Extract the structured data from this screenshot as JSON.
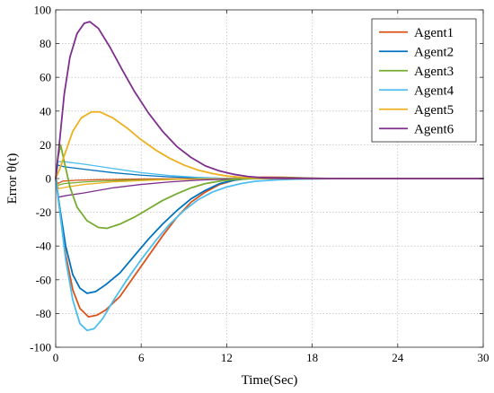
{
  "chart_data": {
    "type": "line",
    "title": "",
    "xlabel": "Time(Sec)",
    "ylabel": "Error θ(t)",
    "xlim": [
      0,
      30
    ],
    "ylim": [
      -100,
      100
    ],
    "xticks": [
      0,
      6,
      12,
      18,
      24,
      30
    ],
    "yticks": [
      -100,
      -80,
      -60,
      -40,
      -20,
      0,
      20,
      40,
      60,
      80,
      100
    ],
    "grid": true,
    "legend_position": "top-right",
    "series": [
      {
        "name": "Agent1",
        "color": "#D95319",
        "values": [
          [
            0,
            0
          ],
          [
            0.3,
            -20
          ],
          [
            0.7,
            -45
          ],
          [
            1.2,
            -66
          ],
          [
            1.7,
            -77
          ],
          [
            2.3,
            -82
          ],
          [
            2.9,
            -81
          ],
          [
            3.5,
            -78
          ],
          [
            4.5,
            -70
          ],
          [
            5.5,
            -58
          ],
          [
            6.5,
            -46
          ],
          [
            7.5,
            -34
          ],
          [
            8.5,
            -23
          ],
          [
            9.5,
            -14
          ],
          [
            10.5,
            -8
          ],
          [
            11.5,
            -3.5
          ],
          [
            12.5,
            -1
          ],
          [
            13.5,
            0.3
          ],
          [
            14.5,
            0.8
          ],
          [
            16,
            0.7
          ],
          [
            18,
            0.2
          ],
          [
            20,
            0
          ],
          [
            30,
            0
          ]
        ]
      },
      {
        "name": "Agent2",
        "color": "#0072BD",
        "values": [
          [
            0,
            0
          ],
          [
            0.3,
            -18
          ],
          [
            0.7,
            -40
          ],
          [
            1.2,
            -57
          ],
          [
            1.7,
            -65
          ],
          [
            2.2,
            -68
          ],
          [
            2.8,
            -67
          ],
          [
            3.5,
            -63
          ],
          [
            4.5,
            -56
          ],
          [
            5.5,
            -46
          ],
          [
            6.5,
            -36
          ],
          [
            7.5,
            -27
          ],
          [
            8.5,
            -19
          ],
          [
            9.5,
            -12
          ],
          [
            10.5,
            -7
          ],
          [
            11.5,
            -3
          ],
          [
            12.5,
            -1
          ],
          [
            13.5,
            0
          ],
          [
            15,
            0.4
          ],
          [
            17,
            0.2
          ],
          [
            20,
            0
          ],
          [
            30,
            0
          ]
        ]
      },
      {
        "name": "Agent3",
        "color": "#77AC30",
        "values": [
          [
            0,
            0
          ],
          [
            0.15,
            12
          ],
          [
            0.35,
            20
          ],
          [
            0.6,
            10
          ],
          [
            1.0,
            -5
          ],
          [
            1.5,
            -17
          ],
          [
            2.2,
            -25
          ],
          [
            3.0,
            -29
          ],
          [
            3.6,
            -29.5
          ],
          [
            4.5,
            -27
          ],
          [
            5.5,
            -23
          ],
          [
            6.5,
            -18
          ],
          [
            7.5,
            -13
          ],
          [
            8.5,
            -9
          ],
          [
            9.5,
            -5.5
          ],
          [
            10.5,
            -3
          ],
          [
            11.5,
            -1.5
          ],
          [
            12.5,
            -0.5
          ],
          [
            14,
            0
          ],
          [
            16,
            0.2
          ],
          [
            20,
            0
          ],
          [
            30,
            0
          ]
        ]
      },
      {
        "name": "Agent4",
        "color": "#4DBEEE",
        "values": [
          [
            0,
            0
          ],
          [
            0.3,
            -20
          ],
          [
            0.7,
            -48
          ],
          [
            1.2,
            -72
          ],
          [
            1.7,
            -86
          ],
          [
            2.2,
            -90
          ],
          [
            2.7,
            -89
          ],
          [
            3.3,
            -83
          ],
          [
            4.0,
            -73
          ],
          [
            5.0,
            -60
          ],
          [
            6.0,
            -48
          ],
          [
            7.0,
            -37
          ],
          [
            8.0,
            -27
          ],
          [
            9.0,
            -19
          ],
          [
            10.0,
            -12.5
          ],
          [
            11.0,
            -8
          ],
          [
            12.0,
            -5
          ],
          [
            13.0,
            -3
          ],
          [
            14.0,
            -1.6
          ],
          [
            15.5,
            -0.8
          ],
          [
            17,
            -0.3
          ],
          [
            20,
            0
          ],
          [
            30,
            0
          ]
        ]
      },
      {
        "name": "Agent5",
        "color": "#EDB120",
        "values": [
          [
            0,
            0
          ],
          [
            0.3,
            6
          ],
          [
            0.7,
            16
          ],
          [
            1.2,
            28
          ],
          [
            1.8,
            36
          ],
          [
            2.5,
            39.5
          ],
          [
            3.1,
            39.5
          ],
          [
            4.0,
            36
          ],
          [
            5.0,
            30
          ],
          [
            6.0,
            23
          ],
          [
            7.0,
            17
          ],
          [
            8.0,
            12
          ],
          [
            9.0,
            8
          ],
          [
            10.0,
            5
          ],
          [
            11.0,
            3
          ],
          [
            12.0,
            1.5
          ],
          [
            13.0,
            0.7
          ],
          [
            14.5,
            0.2
          ],
          [
            16,
            0
          ],
          [
            30,
            0
          ]
        ]
      },
      {
        "name": "Agent6",
        "color": "#7E2F8E",
        "values": [
          [
            0,
            0
          ],
          [
            0.25,
            20
          ],
          [
            0.6,
            50
          ],
          [
            1.0,
            72
          ],
          [
            1.5,
            86
          ],
          [
            2.0,
            92
          ],
          [
            2.4,
            93
          ],
          [
            3.0,
            89
          ],
          [
            3.8,
            78
          ],
          [
            4.7,
            64
          ],
          [
            5.5,
            52
          ],
          [
            6.5,
            39
          ],
          [
            7.5,
            28
          ],
          [
            8.5,
            19
          ],
          [
            9.5,
            12.5
          ],
          [
            10.5,
            7.5
          ],
          [
            11.5,
            4.5
          ],
          [
            12.5,
            2.5
          ],
          [
            13.5,
            1.2
          ],
          [
            14.5,
            0.5
          ],
          [
            16,
            0.1
          ],
          [
            18,
            0
          ],
          [
            30,
            0
          ]
        ]
      },
      {
        "name": "",
        "color": "#D95319",
        "values": [
          [
            0,
            0
          ],
          [
            0.15,
            -3
          ],
          [
            0.5,
            -1.5
          ],
          [
            1.5,
            -1
          ],
          [
            3,
            -0.7
          ],
          [
            6,
            -0.3
          ],
          [
            9,
            -0.1
          ],
          [
            12,
            0
          ],
          [
            30,
            0
          ]
        ]
      },
      {
        "name": "",
        "color": "#0072BD",
        "values": [
          [
            0,
            0
          ],
          [
            0.15,
            8
          ],
          [
            0.6,
            7
          ],
          [
            2,
            5.5
          ],
          [
            4,
            3.5
          ],
          [
            6,
            2
          ],
          [
            8,
            1
          ],
          [
            10,
            0.4
          ],
          [
            12,
            0.1
          ],
          [
            14,
            0
          ],
          [
            30,
            0
          ]
        ]
      },
      {
        "name": "",
        "color": "#77AC30",
        "values": [
          [
            0,
            0
          ],
          [
            0.15,
            -4
          ],
          [
            0.6,
            -3
          ],
          [
            2,
            -2
          ],
          [
            5,
            -1
          ],
          [
            8,
            -0.5
          ],
          [
            11,
            -0.1
          ],
          [
            13,
            0
          ],
          [
            30,
            0
          ]
        ]
      },
      {
        "name": "",
        "color": "#4DBEEE",
        "values": [
          [
            0,
            0
          ],
          [
            0.15,
            10
          ],
          [
            0.6,
            10
          ],
          [
            2,
            8.5
          ],
          [
            4,
            6
          ],
          [
            6,
            3.5
          ],
          [
            8,
            1.8
          ],
          [
            10,
            0.7
          ],
          [
            12,
            0.2
          ],
          [
            14,
            0
          ],
          [
            30,
            0
          ]
        ]
      },
      {
        "name": "",
        "color": "#EDB120",
        "values": [
          [
            0,
            0
          ],
          [
            0.2,
            -6
          ],
          [
            0.8,
            -5
          ],
          [
            2,
            -3.5
          ],
          [
            4,
            -2
          ],
          [
            6,
            -1.2
          ],
          [
            8,
            -0.6
          ],
          [
            10,
            -0.2
          ],
          [
            12,
            0
          ],
          [
            30,
            0
          ]
        ]
      },
      {
        "name": "",
        "color": "#7E2F8E",
        "values": [
          [
            0,
            0
          ],
          [
            0.2,
            -11
          ],
          [
            0.8,
            -10
          ],
          [
            2,
            -8.5
          ],
          [
            4,
            -5.5
          ],
          [
            6,
            -3.5
          ],
          [
            8,
            -2
          ],
          [
            10,
            -0.9
          ],
          [
            12,
            -0.3
          ],
          [
            14,
            0
          ],
          [
            30,
            0
          ]
        ]
      }
    ]
  }
}
